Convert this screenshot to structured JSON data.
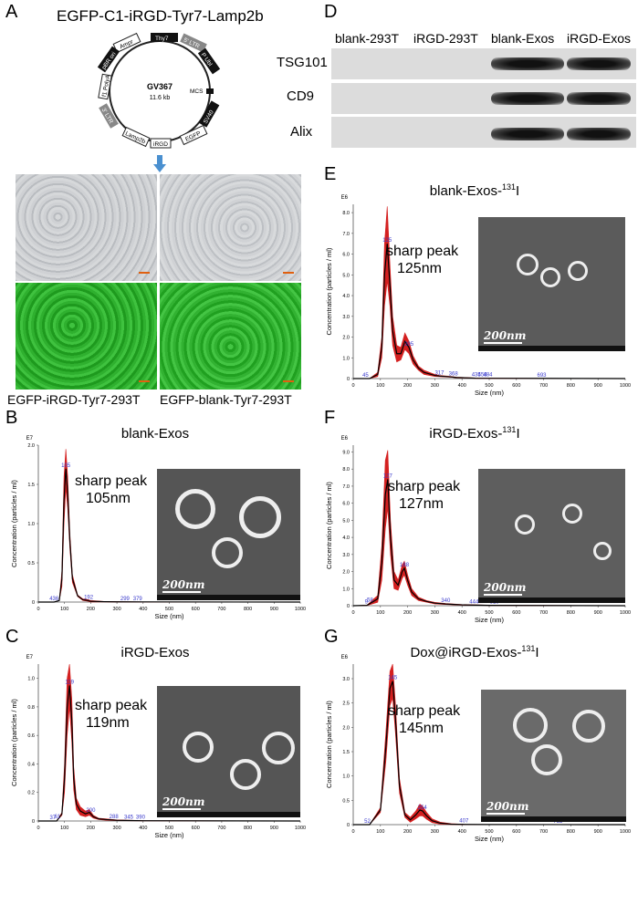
{
  "panel_labels": {
    "A": "A",
    "B": "B",
    "C": "C",
    "D": "D",
    "E": "E",
    "F": "F",
    "G": "G"
  },
  "plasmid": {
    "title": "EGFP-C1-iRGD-Tyr7-Lamp2b",
    "name": "GV367",
    "size": "11.6 kb",
    "features": [
      "Ampr",
      "Thy7",
      "5' LTR",
      "P UbI",
      "MCS",
      "SV40",
      "EGFP",
      "iRGD",
      "Lamp2b",
      "3' LTR",
      "f1 PolyA",
      "pBR ori"
    ]
  },
  "cells": {
    "left_label": "EGFP-iRGD-Tyr7-293T",
    "right_label": "EGFP-blank-Tyr7-293T"
  },
  "western": {
    "columns": [
      "blank-293T",
      "iRGD-293T",
      "blank-Exos",
      "iRGD-Exos"
    ],
    "rows": [
      "TSG101",
      "CD9",
      "Alix"
    ]
  },
  "chart_data": [
    {
      "type": "line",
      "panel": "B",
      "title": "blank-Exos",
      "xlabel": "Size (nm)",
      "ylabel": "Concentration (particles / ml)",
      "y_exponent": "E7",
      "xlim": [
        0,
        1000
      ],
      "ylim": [
        0,
        2.0
      ],
      "xticks": [
        0,
        100,
        200,
        300,
        400,
        500,
        600,
        700,
        800,
        900,
        1000
      ],
      "yticks": [
        "0",
        "0.5",
        "1.0",
        "1.5",
        "2.0"
      ],
      "series": [
        {
          "x": [
            0,
            60,
            80,
            90,
            98,
            105,
            112,
            120,
            130,
            150,
            170,
            190,
            200,
            250,
            300,
            400,
            1000
          ],
          "mean": [
            0,
            0.0,
            0.02,
            0.3,
            1.3,
            1.7,
            1.4,
            0.8,
            0.3,
            0.08,
            0.03,
            0.02,
            0.01,
            0.005,
            0.003,
            0.002,
            0
          ],
          "err": [
            0,
            0.0,
            0.02,
            0.4,
            1.6,
            1.95,
            1.6,
            0.9,
            0.35,
            0.09,
            0.04,
            0.03,
            0.02,
            0.008,
            0.005,
            0.003,
            0
          ]
        }
      ],
      "peak_labels": [
        {
          "x": 105,
          "text": "105"
        },
        {
          "x": 192,
          "text": "192"
        },
        {
          "x": 60,
          "text": "436"
        },
        {
          "x": 325,
          "text": "29"
        },
        {
          "x": 342,
          "text": "9"
        },
        {
          "x": 379,
          "text": "379"
        }
      ],
      "annotation": "sharp peak\n105nm",
      "tem_scale": "200nm"
    },
    {
      "type": "line",
      "panel": "C",
      "title": "iRGD-Exos",
      "xlabel": "Size (nm)",
      "ylabel": "Concentration (particles / ml)",
      "y_exponent": "E7",
      "xlim": [
        0,
        1000
      ],
      "ylim": [
        0,
        1.1
      ],
      "xticks": [
        0,
        100,
        200,
        300,
        400,
        500,
        600,
        700,
        800,
        900,
        1000
      ],
      "yticks": [
        "0",
        "0.2",
        "0.4",
        "0.6",
        "0.8",
        "1.0"
      ],
      "series": [
        {
          "x": [
            0,
            70,
            90,
            100,
            110,
            119,
            128,
            135,
            145,
            160,
            180,
            195,
            210,
            230,
            260,
            300,
            400,
            1000
          ],
          "mean": [
            0,
            0,
            0.05,
            0.3,
            0.8,
            0.95,
            0.7,
            0.3,
            0.12,
            0.07,
            0.05,
            0.06,
            0.03,
            0.015,
            0.01,
            0.005,
            0.002,
            0
          ],
          "err": [
            0,
            0,
            0.06,
            0.4,
            1.0,
            1.1,
            0.85,
            0.38,
            0.16,
            0.1,
            0.07,
            0.08,
            0.04,
            0.02,
            0.015,
            0.008,
            0.003,
            0
          ]
        }
      ],
      "peak_labels": [
        {
          "x": 119,
          "text": "119"
        },
        {
          "x": 200,
          "text": "200"
        },
        {
          "x": 55,
          "text": "37"
        },
        {
          "x": 73,
          "text": "61"
        },
        {
          "x": 288,
          "text": "288"
        },
        {
          "x": 345,
          "text": "345"
        },
        {
          "x": 390,
          "text": "390"
        }
      ],
      "annotation": "sharp peak\n119nm",
      "tem_scale": "200nm"
    },
    {
      "type": "line",
      "panel": "E",
      "title": "blank-Exos-131I",
      "xlabel": "Size (nm)",
      "ylabel": "Concentration (particles / ml)",
      "y_exponent": "E6",
      "xlim": [
        0,
        1000
      ],
      "ylim": [
        0,
        8.4
      ],
      "xticks": [
        0,
        100,
        200,
        300,
        400,
        500,
        600,
        700,
        800,
        900,
        1000
      ],
      "yticks": [
        "0",
        "1.0",
        "2.0",
        "3.0",
        "4.0",
        "5.0",
        "6.0",
        "7.0",
        "8.0"
      ],
      "series": [
        {
          "x": [
            0,
            60,
            90,
            105,
            115,
            125,
            135,
            145,
            160,
            175,
            190,
            205,
            220,
            240,
            260,
            300,
            317,
            360,
            380,
            450,
            700,
            1000
          ],
          "mean": [
            0,
            0,
            0.2,
            1.5,
            5.0,
            6.5,
            4.5,
            2.3,
            1.2,
            1.2,
            1.8,
            1.5,
            0.9,
            0.5,
            0.3,
            0.15,
            0.12,
            0.08,
            0.05,
            0.02,
            0.01,
            0
          ],
          "err": [
            0,
            0,
            0.3,
            2.0,
            6.5,
            8.3,
            5.5,
            3.0,
            1.6,
            1.5,
            2.2,
            1.8,
            1.1,
            0.6,
            0.4,
            0.2,
            0.15,
            0.1,
            0.07,
            0.03,
            0.01,
            0
          ]
        }
      ],
      "peak_labels": [
        {
          "x": 125,
          "text": "125"
        },
        {
          "x": 205,
          "text": "205"
        },
        {
          "x": 45,
          "text": "45"
        },
        {
          "x": 317,
          "text": "317"
        },
        {
          "x": 368,
          "text": "368"
        },
        {
          "x": 452,
          "text": "435"
        },
        {
          "x": 475,
          "text": "458"
        },
        {
          "x": 495,
          "text": "484"
        },
        {
          "x": 693,
          "text": "693"
        }
      ],
      "annotation": "sharp peak\n125nm",
      "tem_scale": "200nm"
    },
    {
      "type": "line",
      "panel": "F",
      "title": "iRGD-Exos-131I",
      "xlabel": "Size (nm)",
      "ylabel": "Concentration (particles / ml)",
      "y_exponent": "E6",
      "xlim": [
        0,
        1000
      ],
      "ylim": [
        0,
        9.4
      ],
      "xticks": [
        0,
        100,
        200,
        300,
        400,
        500,
        600,
        700,
        800,
        900,
        1000
      ],
      "yticks": [
        "0",
        "1.0",
        "2.0",
        "3.0",
        "4.0",
        "5.0",
        "6.0",
        "7.0",
        "8.0",
        "9.0"
      ],
      "series": [
        {
          "x": [
            0,
            50,
            90,
            105,
            118,
            127,
            137,
            150,
            165,
            180,
            188,
            200,
            215,
            240,
            270,
            300,
            340,
            400,
            500,
            1000
          ],
          "mean": [
            0,
            0.02,
            0.4,
            2.5,
            6.5,
            7.4,
            4.0,
            1.5,
            1.2,
            2.0,
            2.2,
            1.5,
            0.8,
            0.4,
            0.25,
            0.15,
            0.1,
            0.05,
            0.02,
            0
          ],
          "err": [
            0,
            0.03,
            0.6,
            3.5,
            8.5,
            9.1,
            5.0,
            2.0,
            1.5,
            2.4,
            2.6,
            1.8,
            1.0,
            0.5,
            0.3,
            0.2,
            0.13,
            0.07,
            0.03,
            0
          ]
        }
      ],
      "peak_labels": [
        {
          "x": 127,
          "text": "127"
        },
        {
          "x": 188,
          "text": "188"
        },
        {
          "x": 48,
          "text": "9"
        },
        {
          "x": 62,
          "text": "58"
        },
        {
          "x": 340,
          "text": "340"
        },
        {
          "x": 444,
          "text": "444"
        },
        {
          "x": 519,
          "text": "519"
        }
      ],
      "annotation": "sharp peak\n127nm",
      "tem_scale": "200nm"
    },
    {
      "type": "line",
      "panel": "G",
      "title": "Dox@iRGD-Exos-131I",
      "xlabel": "Size (nm)",
      "ylabel": "Concentration (particles / ml)",
      "y_exponent": "E6",
      "xlim": [
        0,
        1000
      ],
      "ylim": [
        0,
        3.3
      ],
      "xticks": [
        0,
        100,
        200,
        300,
        400,
        500,
        600,
        700,
        800,
        900,
        1000
      ],
      "yticks": [
        "0",
        "0.5",
        "1.0",
        "1.5",
        "2.0",
        "2.5",
        "3.0"
      ],
      "series": [
        {
          "x": [
            0,
            60,
            100,
            120,
            135,
            145,
            155,
            170,
            190,
            210,
            230,
            245,
            255,
            270,
            290,
            320,
            360,
            407,
            500,
            753,
            1000
          ],
          "mean": [
            0,
            0,
            0.3,
            1.6,
            2.8,
            2.95,
            2.2,
            0.8,
            0.2,
            0.1,
            0.2,
            0.3,
            0.28,
            0.18,
            0.08,
            0.03,
            0.01,
            0.005,
            0.003,
            0.001,
            0
          ],
          "err": [
            0,
            0,
            0.35,
            1.9,
            3.15,
            3.3,
            2.5,
            0.95,
            0.25,
            0.15,
            0.28,
            0.42,
            0.38,
            0.25,
            0.12,
            0.05,
            0.02,
            0.008,
            0.004,
            0.002,
            0
          ]
        }
      ],
      "peak_labels": [
        {
          "x": 145,
          "text": "145"
        },
        {
          "x": 254,
          "text": "254"
        },
        {
          "x": 52,
          "text": "52"
        },
        {
          "x": 407,
          "text": "407"
        },
        {
          "x": 753,
          "text": "753"
        }
      ],
      "annotation": "sharp peak\n145nm",
      "tem_scale": "200nm"
    }
  ],
  "colors": {
    "mean": "#000000",
    "err": "#d42020",
    "labels": "#3a3acc"
  }
}
